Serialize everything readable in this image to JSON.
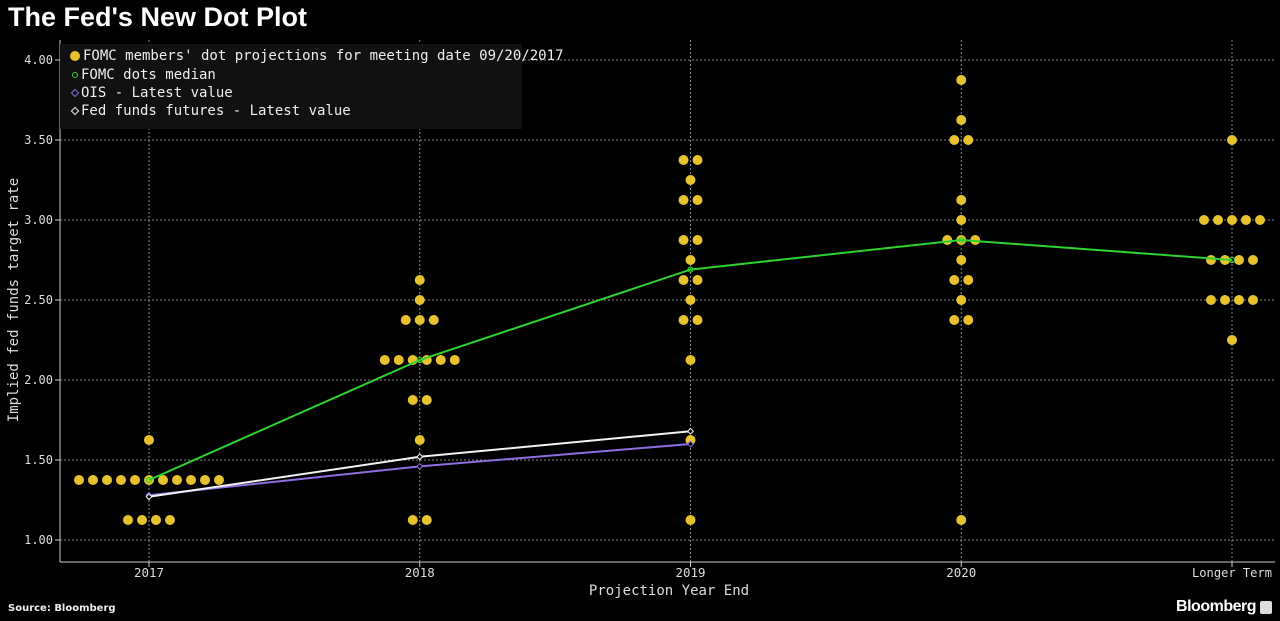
{
  "title": "The Fed's New Dot Plot",
  "source": "Source: Bloomberg",
  "brand": "Bloomberg",
  "chart_data": {
    "type": "scatter",
    "title": "The Fed's New Dot Plot",
    "xlabel": "Projection Year End",
    "ylabel": "Implied fed funds target rate",
    "categories": [
      "2017",
      "2018",
      "2019",
      "2020",
      "Longer Term"
    ],
    "ylim": [
      1.0,
      4.0
    ],
    "yticks": [
      "1.00",
      "1.50",
      "2.00",
      "2.50",
      "3.00",
      "3.50",
      "4.00"
    ],
    "grid": true,
    "legend_position": "top-left",
    "series": [
      {
        "name": "FOMC members' dot projections for meeting date 09/20/2017",
        "kind": "dots",
        "color": "#e8c22e",
        "values": [
          [
            1.625,
            1.375,
            1.375,
            1.375,
            1.375,
            1.375,
            1.375,
            1.375,
            1.375,
            1.375,
            1.375,
            1.375,
            1.125,
            1.125,
            1.125,
            1.125
          ],
          [
            2.625,
            2.5,
            2.375,
            2.375,
            2.375,
            2.125,
            2.125,
            2.125,
            2.125,
            2.125,
            2.125,
            1.875,
            1.875,
            1.625,
            1.125,
            1.125
          ],
          [
            3.375,
            3.375,
            3.25,
            3.125,
            3.125,
            2.875,
            2.875,
            2.75,
            2.625,
            2.625,
            2.5,
            2.375,
            2.375,
            2.125,
            1.625,
            1.125
          ],
          [
            3.875,
            3.625,
            3.5,
            3.5,
            3.125,
            3.0,
            2.875,
            2.875,
            2.875,
            2.75,
            2.625,
            2.625,
            2.5,
            2.375,
            2.375,
            1.125
          ],
          [
            3.5,
            3.0,
            3.0,
            3.0,
            3.0,
            3.0,
            2.75,
            2.75,
            2.75,
            2.75,
            2.5,
            2.5,
            2.5,
            2.5,
            2.25
          ]
        ]
      },
      {
        "name": "FOMC dots median",
        "kind": "line",
        "color": "#2ed32e",
        "values": [
          1.375,
          2.125,
          2.69,
          2.875,
          2.75
        ]
      },
      {
        "name": "OIS - Latest value",
        "kind": "line",
        "color": "#8c6fe0",
        "values": [
          1.28,
          1.46,
          1.6,
          null,
          null
        ]
      },
      {
        "name": "Fed funds futures - Latest value",
        "kind": "line",
        "color": "#f2f2f2",
        "values": [
          1.27,
          1.52,
          1.68,
          null,
          null
        ]
      }
    ]
  }
}
